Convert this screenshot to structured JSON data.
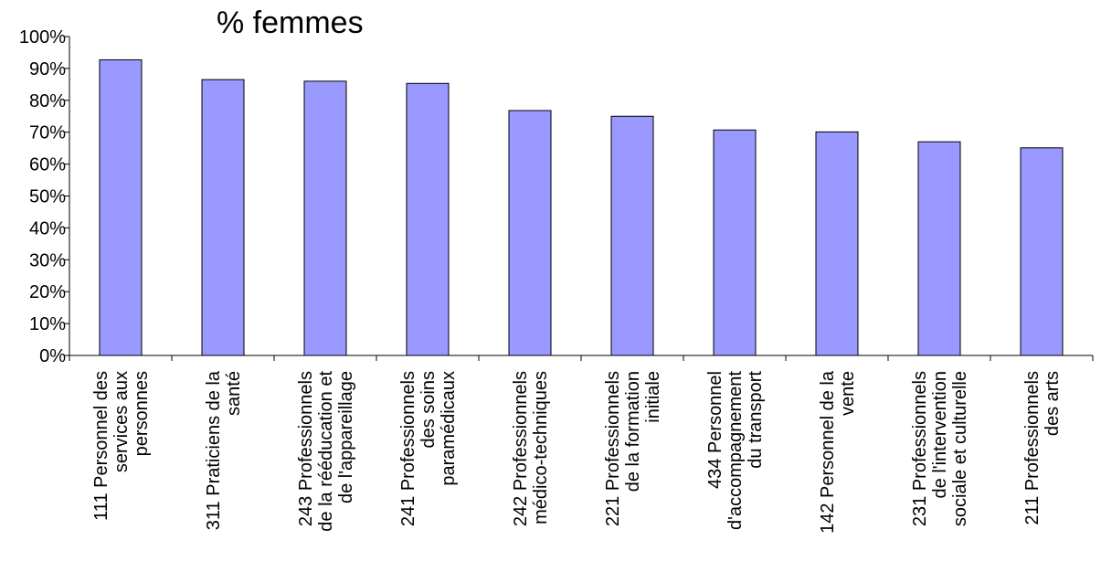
{
  "chart_data": {
    "type": "bar",
    "title": "% femmes",
    "xlabel": "",
    "ylabel": "",
    "ylim": [
      0,
      100
    ],
    "y_ticks": [
      "0%",
      "10%",
      "20%",
      "30%",
      "40%",
      "50%",
      "60%",
      "70%",
      "80%",
      "90%",
      "100%"
    ],
    "grid": false,
    "legend": "none",
    "bar_color": "#9999FF",
    "categories": [
      [
        "111 Personnel des",
        "services aux",
        "personnes"
      ],
      [
        "311 Praticiens de la",
        "santé"
      ],
      [
        "243 Professionnels",
        "de la rééducation et",
        "de l'appareillage"
      ],
      [
        "241 Professionnels",
        "des soins",
        "paramédicaux"
      ],
      [
        "242 Professionnels",
        "médico-techniques"
      ],
      [
        "221 Professionnels",
        "de la formation",
        "initiale"
      ],
      [
        "434 Personnel",
        "d'accompagnement",
        "du transport"
      ],
      [
        "142 Personnel de la",
        "vente"
      ],
      [
        "231 Professionnels",
        "de l'intervention",
        "sociale et culturelle"
      ],
      [
        "211 Professionnels",
        "des arts"
      ]
    ],
    "values": [
      92.7,
      86.5,
      86.0,
      85.3,
      76.8,
      75.0,
      70.7,
      70.1,
      67.0,
      65.1
    ]
  }
}
